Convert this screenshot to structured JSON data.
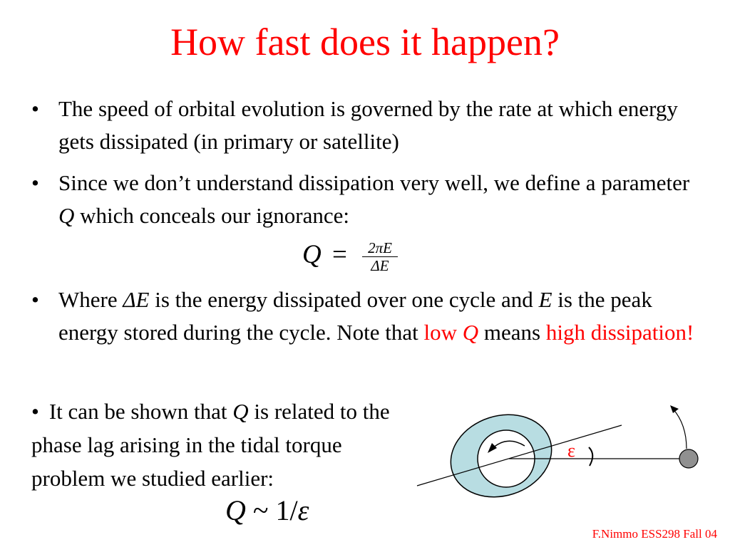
{
  "title": "How fast does it happen?",
  "bullet_char": "•",
  "bullet1": {
    "text": "The speed of orbital evolution is governed by the rate at which energy gets dissipated (in primary or satellite)"
  },
  "bullet2": {
    "text_before": "Since we don’t understand dissipation very well, we define a parameter ",
    "q": "Q",
    "text_after": " which conceals our ignorance:"
  },
  "formula": {
    "lhs": "Q",
    "equals": "=",
    "numerator": "2πE",
    "denominator": "ΔE"
  },
  "bullet3": {
    "part1": "Where ",
    "delta_e": "ΔE",
    "part2": " is the energy dissipated over one cycle and ",
    "e": "E",
    "part3": " is the peak energy stored during the cycle. Note that ",
    "low": "low ",
    "q": "Q",
    "means": " means ",
    "high": "high dissipation!"
  },
  "bullet4": {
    "part1": "It can be shown that ",
    "q": "Q",
    "part2": " is related to the phase lag arising in the tidal torque problem we studied earlier:"
  },
  "relation": {
    "q": "Q",
    "op": " ~ 1/",
    "eps": "ε"
  },
  "diagram": {
    "epsilon_label": "ε",
    "colors": {
      "ellipse_fill": "#b8dde2",
      "satellite_fill": "#909090",
      "epsilon_color": "#ff0000"
    }
  },
  "footer": "F.Nimmo ESS298 Fall 04"
}
